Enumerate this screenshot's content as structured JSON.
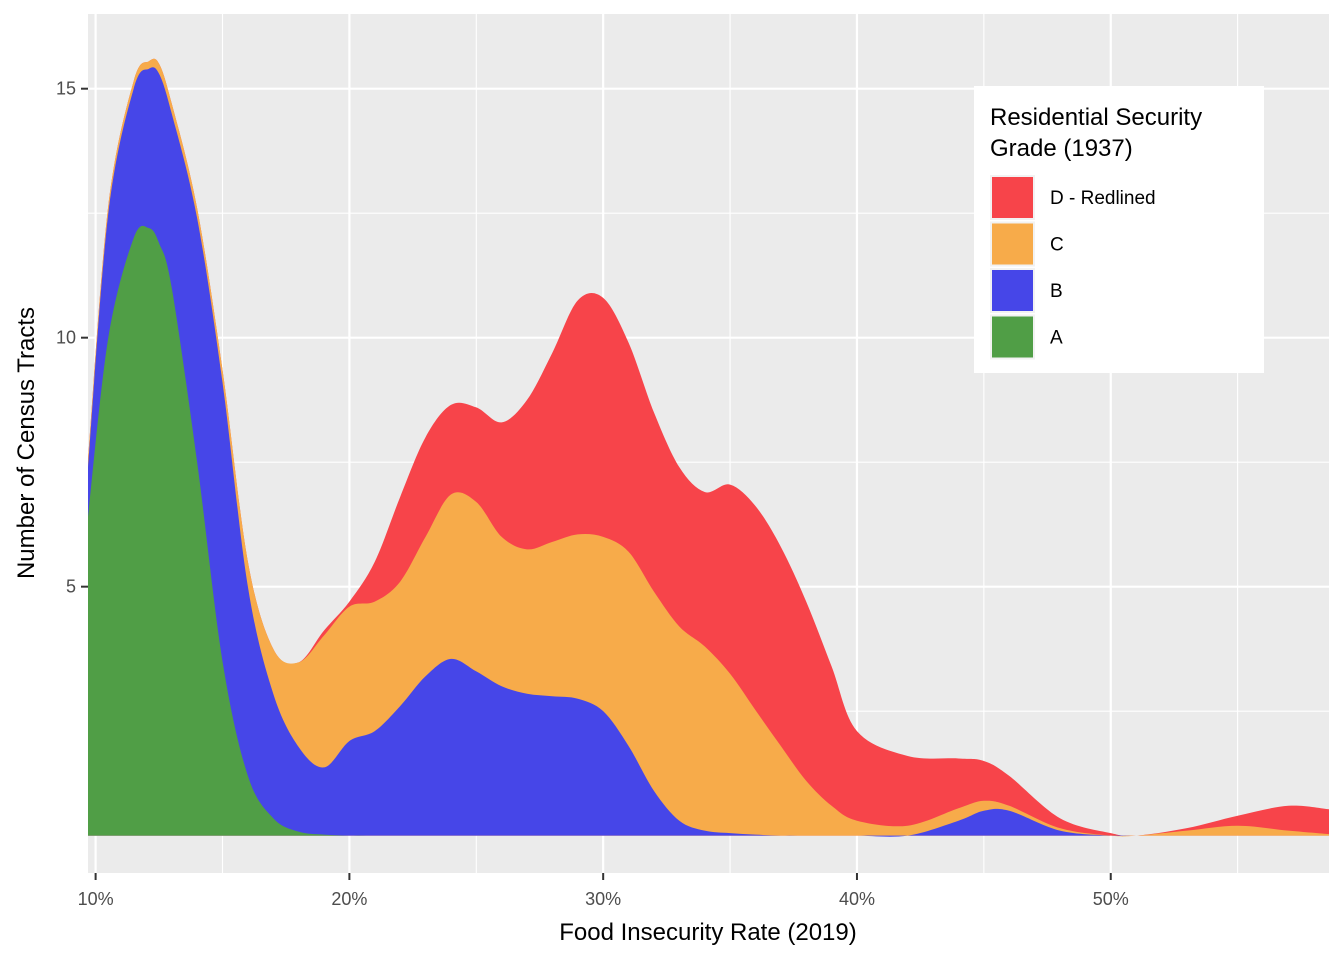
{
  "chart_data": {
    "type": "area",
    "stacked": true,
    "xlabel": "Food Insecurity Rate (2019)",
    "ylabel": "Number of Census Tracts",
    "xlim": [
      0.097,
      0.586
    ],
    "ylim": [
      -0.75,
      16.5
    ],
    "x_ticks": [
      0.1,
      0.2,
      0.3,
      0.4,
      0.5
    ],
    "x_tick_labels": [
      "10%",
      "20%",
      "30%",
      "40%",
      "50%"
    ],
    "y_ticks": [
      5,
      10,
      15
    ],
    "y_tick_labels": [
      "5",
      "10",
      "15"
    ],
    "grid": true,
    "legend": {
      "title_lines": [
        "Residential Security",
        "Grade (1937)"
      ],
      "position": "top-right"
    },
    "x": [
      0.097,
      0.105,
      0.115,
      0.121,
      0.125,
      0.13,
      0.14,
      0.15,
      0.16,
      0.17,
      0.18,
      0.19,
      0.2,
      0.21,
      0.22,
      0.23,
      0.24,
      0.25,
      0.26,
      0.27,
      0.28,
      0.29,
      0.3,
      0.31,
      0.32,
      0.33,
      0.34,
      0.35,
      0.36,
      0.37,
      0.38,
      0.39,
      0.4,
      0.42,
      0.44,
      0.45,
      0.46,
      0.48,
      0.5,
      0.51,
      0.53,
      0.55,
      0.57,
      0.586
    ],
    "series": [
      {
        "name": "A",
        "color": "#509E46",
        "values": [
          6.4,
          10.0,
          12.0,
          12.2,
          11.9,
          11.0,
          7.5,
          3.5,
          1.2,
          0.35,
          0.08,
          0.02,
          0,
          0,
          0,
          0,
          0,
          0,
          0,
          0,
          0,
          0,
          0,
          0,
          0,
          0,
          0,
          0,
          0,
          0,
          0,
          0,
          0,
          0,
          0,
          0,
          0,
          0,
          0,
          0,
          0,
          0,
          0,
          0
        ]
      },
      {
        "name": "B",
        "color": "#4646E8",
        "values": [
          1.0,
          2.5,
          3.0,
          3.2,
          3.4,
          3.5,
          4.9,
          5.6,
          3.8,
          2.5,
          1.7,
          1.35,
          1.9,
          2.1,
          2.6,
          3.2,
          3.55,
          3.3,
          3.0,
          2.85,
          2.8,
          2.75,
          2.5,
          1.8,
          0.9,
          0.3,
          0.1,
          0.05,
          0.02,
          0,
          0,
          0,
          0,
          0,
          0.3,
          0.5,
          0.5,
          0.1,
          0,
          0,
          0,
          0,
          0,
          0
        ]
      },
      {
        "name": "C",
        "color": "#F7AB4A",
        "values": [
          0.15,
          0.15,
          0.15,
          0.15,
          0.2,
          0.2,
          0.2,
          0.25,
          0.5,
          0.9,
          1.7,
          2.65,
          2.7,
          2.6,
          2.5,
          2.8,
          3.3,
          3.4,
          3.0,
          2.9,
          3.1,
          3.3,
          3.5,
          3.9,
          4.0,
          3.9,
          3.7,
          3.2,
          2.5,
          1.8,
          1.1,
          0.6,
          0.3,
          0.2,
          0.25,
          0.2,
          0.1,
          0.05,
          0,
          0,
          0.1,
          0.2,
          0.1,
          0.03
        ]
      },
      {
        "name": "D - Redlined",
        "color": "#F7444A",
        "values": [
          0,
          0,
          0,
          0,
          0,
          0,
          0,
          0,
          0,
          0,
          0,
          0.1,
          0.1,
          0.8,
          1.7,
          2.0,
          1.8,
          1.9,
          2.3,
          3.0,
          3.8,
          4.7,
          4.8,
          4.2,
          3.6,
          3.2,
          3.1,
          3.8,
          4.1,
          4.0,
          3.6,
          2.8,
          1.8,
          1.4,
          1.0,
          0.8,
          0.6,
          0.2,
          0.05,
          0,
          0.05,
          0.2,
          0.5,
          0.5
        ]
      }
    ],
    "legend_order": [
      "D - Redlined",
      "C",
      "B",
      "A"
    ]
  }
}
